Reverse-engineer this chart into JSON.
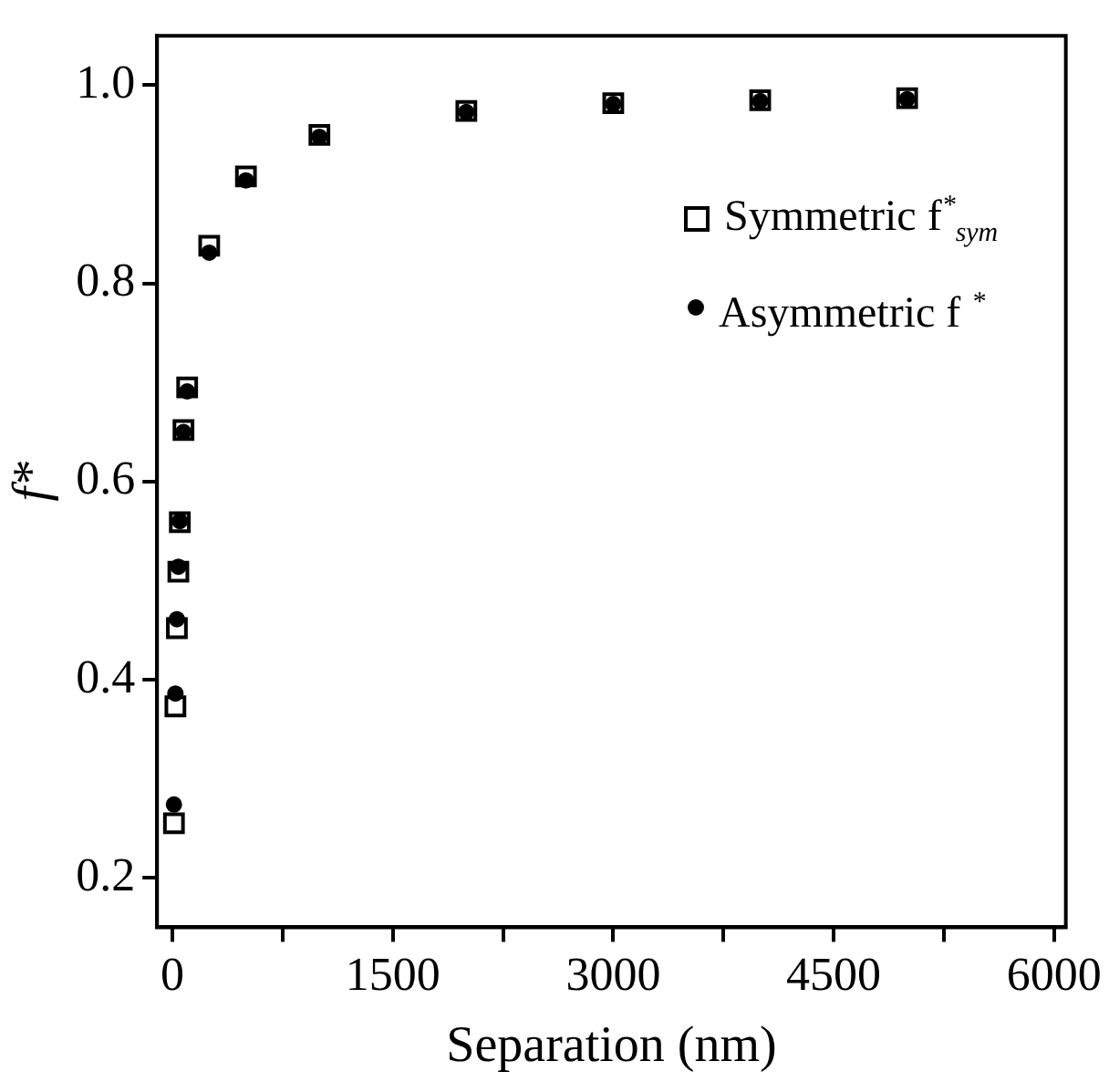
{
  "chart_data": {
    "type": "scatter",
    "xlabel": "Separation (nm)",
    "ylabel": "f*",
    "x": [
      10,
      20,
      30,
      40,
      50,
      75,
      100,
      250,
      500,
      1000,
      2000,
      3000,
      4000,
      5000
    ],
    "series": [
      {
        "name": "Symmetric f$^{*}$$_{sym}$",
        "color": "#000000",
        "marker": "square",
        "values": [
          0.255,
          0.373,
          0.452,
          0.509,
          0.559,
          0.652,
          0.695,
          0.838,
          0.908,
          0.95,
          0.974,
          0.982,
          0.985,
          0.987
        ]
      },
      {
        "name": "Asymmetric f $^{*}$",
        "color": "#000000",
        "marker": "circle",
        "values": [
          0.274,
          0.386,
          0.461,
          0.514,
          0.56,
          0.65,
          0.691,
          0.831,
          0.904,
          0.948,
          0.973,
          0.981,
          0.984,
          0.986
        ]
      }
    ],
    "xlim": [
      -105,
      6080
    ],
    "ylim": [
      0.15,
      1.05
    ],
    "xticks": [
      0,
      {
        "value": 750,
        "label": null
      },
      1500,
      {
        "value": 2250,
        "label": null
      },
      3000,
      {
        "value": 3750,
        "label": null
      },
      4500,
      {
        "value": 5250,
        "label": null
      },
      6000
    ],
    "yticks": [
      {
        "value": 0.2,
        "label": "0.2"
      },
      {
        "value": 0.4,
        "label": "0.4"
      },
      {
        "value": 0.6,
        "label": "0.6"
      },
      {
        "value": 0.8,
        "label": "0.8"
      },
      {
        "value": 1.0,
        "label": "1.0"
      }
    ],
    "grid": false,
    "legend": "right"
  }
}
